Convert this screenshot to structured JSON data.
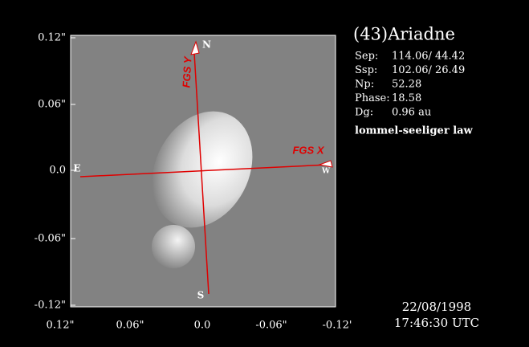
{
  "axes": {
    "y_ticks": [
      "0.12\"",
      "0.06\"",
      "0.0",
      "-0.06\"",
      "-0.12\""
    ],
    "x_ticks": [
      "0.12\"",
      "0.06\"",
      "0.0",
      "-0.06\"",
      "-0.12'"
    ]
  },
  "overlay": {
    "fgs_x": "FGS X",
    "fgs_y": "FGS Y",
    "north": "N",
    "south": "S",
    "east": "E",
    "west": "W"
  },
  "info": {
    "title": "(43)Ariadne",
    "stats": [
      [
        "Sep:",
        "114.06/ 44.42"
      ],
      [
        "Ssp:",
        "102.06/ 26.49"
      ],
      [
        "Np:",
        "52.28"
      ],
      [
        "Phase:",
        "18.58"
      ],
      [
        "Dg:",
        "0.96 au"
      ]
    ],
    "law": "lommel-seeliger law",
    "date": "22/08/1998",
    "time": "17:46:30 UTC"
  }
}
